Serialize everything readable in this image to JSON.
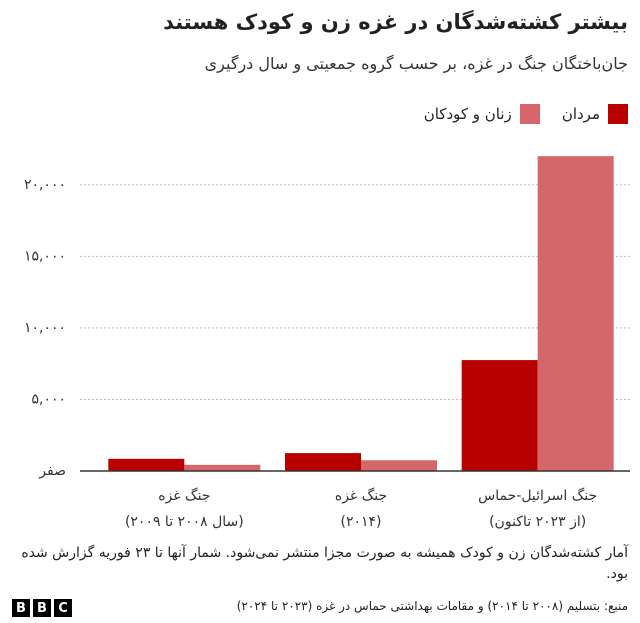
{
  "chart_data": {
    "type": "bar",
    "title": "بیشتر کشته‌شدگان در غزه زن و کودک هستند",
    "subtitle": "جان‌باختگان جنگ در غزه، بر حسب گروه جمعیتی و سال درگیری",
    "categories": [
      [
        "جنگ غزه",
        "(سال ۲۰۰۸ تا ۲۰۰۹)"
      ],
      [
        "جنگ غزه",
        "(۲۰۱۴)"
      ],
      [
        "جنگ اسرائیل-حماس",
        "(از ۲۰۲۳ تاکنون)"
      ]
    ],
    "series": [
      {
        "name": "مردان",
        "color": "#b80000",
        "values": [
          850,
          1250,
          7750
        ]
      },
      {
        "name": "زنان و کودکان",
        "color": "#d5666a",
        "values": [
          430,
          750,
          22000
        ]
      }
    ],
    "ylim": [
      0,
      22500
    ],
    "yticks": [
      {
        "value": 0,
        "label": "صفر"
      },
      {
        "value": 5000,
        "label": "۵,۰۰۰"
      },
      {
        "value": 10000,
        "label": "۱۰,۰۰۰"
      },
      {
        "value": 15000,
        "label": "۱۵,۰۰۰"
      },
      {
        "value": 20000,
        "label": "۲۰,۰۰۰"
      }
    ],
    "grid": true,
    "note": "آمار کشته‌شدگان زن و کودک همیشه به صورت مجزا منتشر نمی‌شود. شمار آنها تا ۲۳ فوریه گزارش شده بود.",
    "source": "منبع: بتسلیم (۲۰۰۸ تا ۲۰۱۴) و مقامات بهداشتی حماس در غزه (۲۰۲۳ تا ۲۰۲۴)",
    "logo": [
      "B",
      "B",
      "C"
    ]
  }
}
